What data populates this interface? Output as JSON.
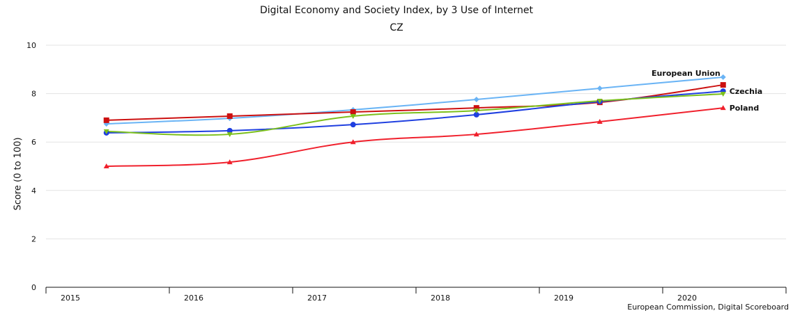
{
  "chart_data": {
    "type": "line",
    "title": "Digital Economy and Society Index, by 3 Use of Internet",
    "subtitle": "CZ",
    "xlabel": "",
    "ylabel": "Score (0 to 100)",
    "ylim": [
      0,
      10
    ],
    "yticks": [
      0,
      2,
      4,
      6,
      8,
      10
    ],
    "grid": true,
    "categories": [
      "2015",
      "2016",
      "2017",
      "2018",
      "2019",
      "2020"
    ],
    "credit": "European Commission, Digital Scoreboard",
    "series": [
      {
        "name": "European Union",
        "label": "European Union",
        "color": "#6ab4f5",
        "marker": "diamond",
        "values": [
          6.75,
          6.98,
          7.33,
          7.76,
          8.22,
          8.68
        ]
      },
      {
        "name": "Series (dark red)",
        "label": "",
        "color": "#cc1010",
        "marker": "square",
        "values": [
          6.9,
          7.07,
          7.24,
          7.41,
          7.64,
          8.36
        ]
      },
      {
        "name": "Czechia",
        "label": "Czechia",
        "color": "#1f3fe0",
        "marker": "circle",
        "values": [
          6.38,
          6.47,
          6.72,
          7.13,
          7.67,
          8.1
        ]
      },
      {
        "name": "Series (green)",
        "label": "",
        "color": "#7cc01c",
        "marker": "triangle-down",
        "values": [
          6.44,
          6.32,
          7.07,
          7.3,
          7.7,
          7.99
        ]
      },
      {
        "name": "Poland",
        "label": "Poland",
        "color": "#f0202c",
        "marker": "triangle-up",
        "values": [
          5.0,
          5.17,
          6.0,
          6.32,
          6.84,
          7.41
        ]
      }
    ]
  }
}
